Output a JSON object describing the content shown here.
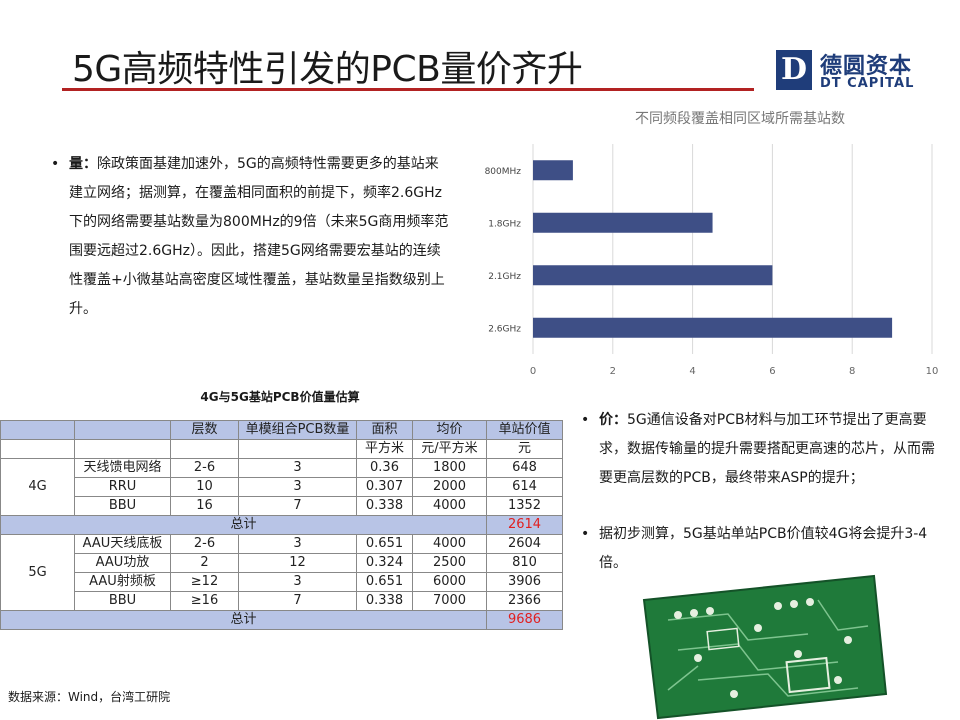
{
  "slide": {
    "title": "5G高频特性引发的PCB量价齐升",
    "logo_mark": "D",
    "logo_cn": "德圆资本",
    "logo_en": "DT CAPITAL",
    "source": "数据来源：Wind，台湾工研院"
  },
  "text": {
    "bullet1_head": "量：",
    "bullet1_body": "除政策面基建加速外，5G的高频特性需要更多的基站来建立网络；据测算，在覆盖相同面积的前提下，频率2.6GHz下的网络需要基站数量为800MHz的9倍（未来5G商用频率范围要远超过2.6GHz）。因此，搭建5G网络需要宏基站的连续性覆盖+小微基站高密度区域性覆盖，基站数量呈指数级别上升。",
    "bullet2_head": "价：",
    "bullet2_body": "5G通信设备对PCB材料与加工环节提出了更高要求，数据传输量的提升需要搭配更高速的芯片，从而需要更高层数的PCB，最终带来ASP的提升；",
    "bullet3_body": "据初步测算，5G基站单站PCB价值较4G将会提升3-4倍。",
    "bullet_symbol": "•"
  },
  "chart_data": {
    "type": "bar",
    "orientation": "horizontal",
    "title": "不同频段覆盖相同区域所需基站数",
    "categories": [
      "800MHz",
      "1.8GHz",
      "2.1GHz",
      "2.6GHz"
    ],
    "values": [
      1,
      4.5,
      6,
      9
    ],
    "xlim": [
      0,
      10
    ],
    "xticks": [
      "0",
      "2",
      "4",
      "6",
      "8",
      "10"
    ],
    "grid": true,
    "bar_color": "#3e4f86"
  },
  "table": {
    "title": "4G与5G基站PCB价值量估算",
    "header1": [
      "",
      "",
      "层数",
      "单模组合PCB数量",
      "面积",
      "均价",
      "单站价值"
    ],
    "header2": [
      "",
      "",
      "",
      "",
      "平方米",
      "元/平方米",
      "元"
    ],
    "group_4g": "4G",
    "rows_4g": [
      [
        "天线馈电网络",
        "2-6",
        "3",
        "0.36",
        "1800",
        "648"
      ],
      [
        "RRU",
        "10",
        "3",
        "0.307",
        "2000",
        "614"
      ],
      [
        "BBU",
        "16",
        "7",
        "0.338",
        "4000",
        "1352"
      ]
    ],
    "total_label": "总计",
    "total_4g": "2614",
    "group_5g": "5G",
    "rows_5g": [
      [
        "AAU天线底板",
        "2-6",
        "3",
        "0.651",
        "4000",
        "2604"
      ],
      [
        "AAU功放",
        "2",
        "12",
        "0.324",
        "2500",
        "810"
      ],
      [
        "AAU射频板",
        "≥12",
        "3",
        "0.651",
        "6000",
        "3906"
      ],
      [
        "BBU",
        "≥16",
        "7",
        "0.338",
        "7000",
        "2366"
      ]
    ],
    "total_5g": "9686"
  }
}
